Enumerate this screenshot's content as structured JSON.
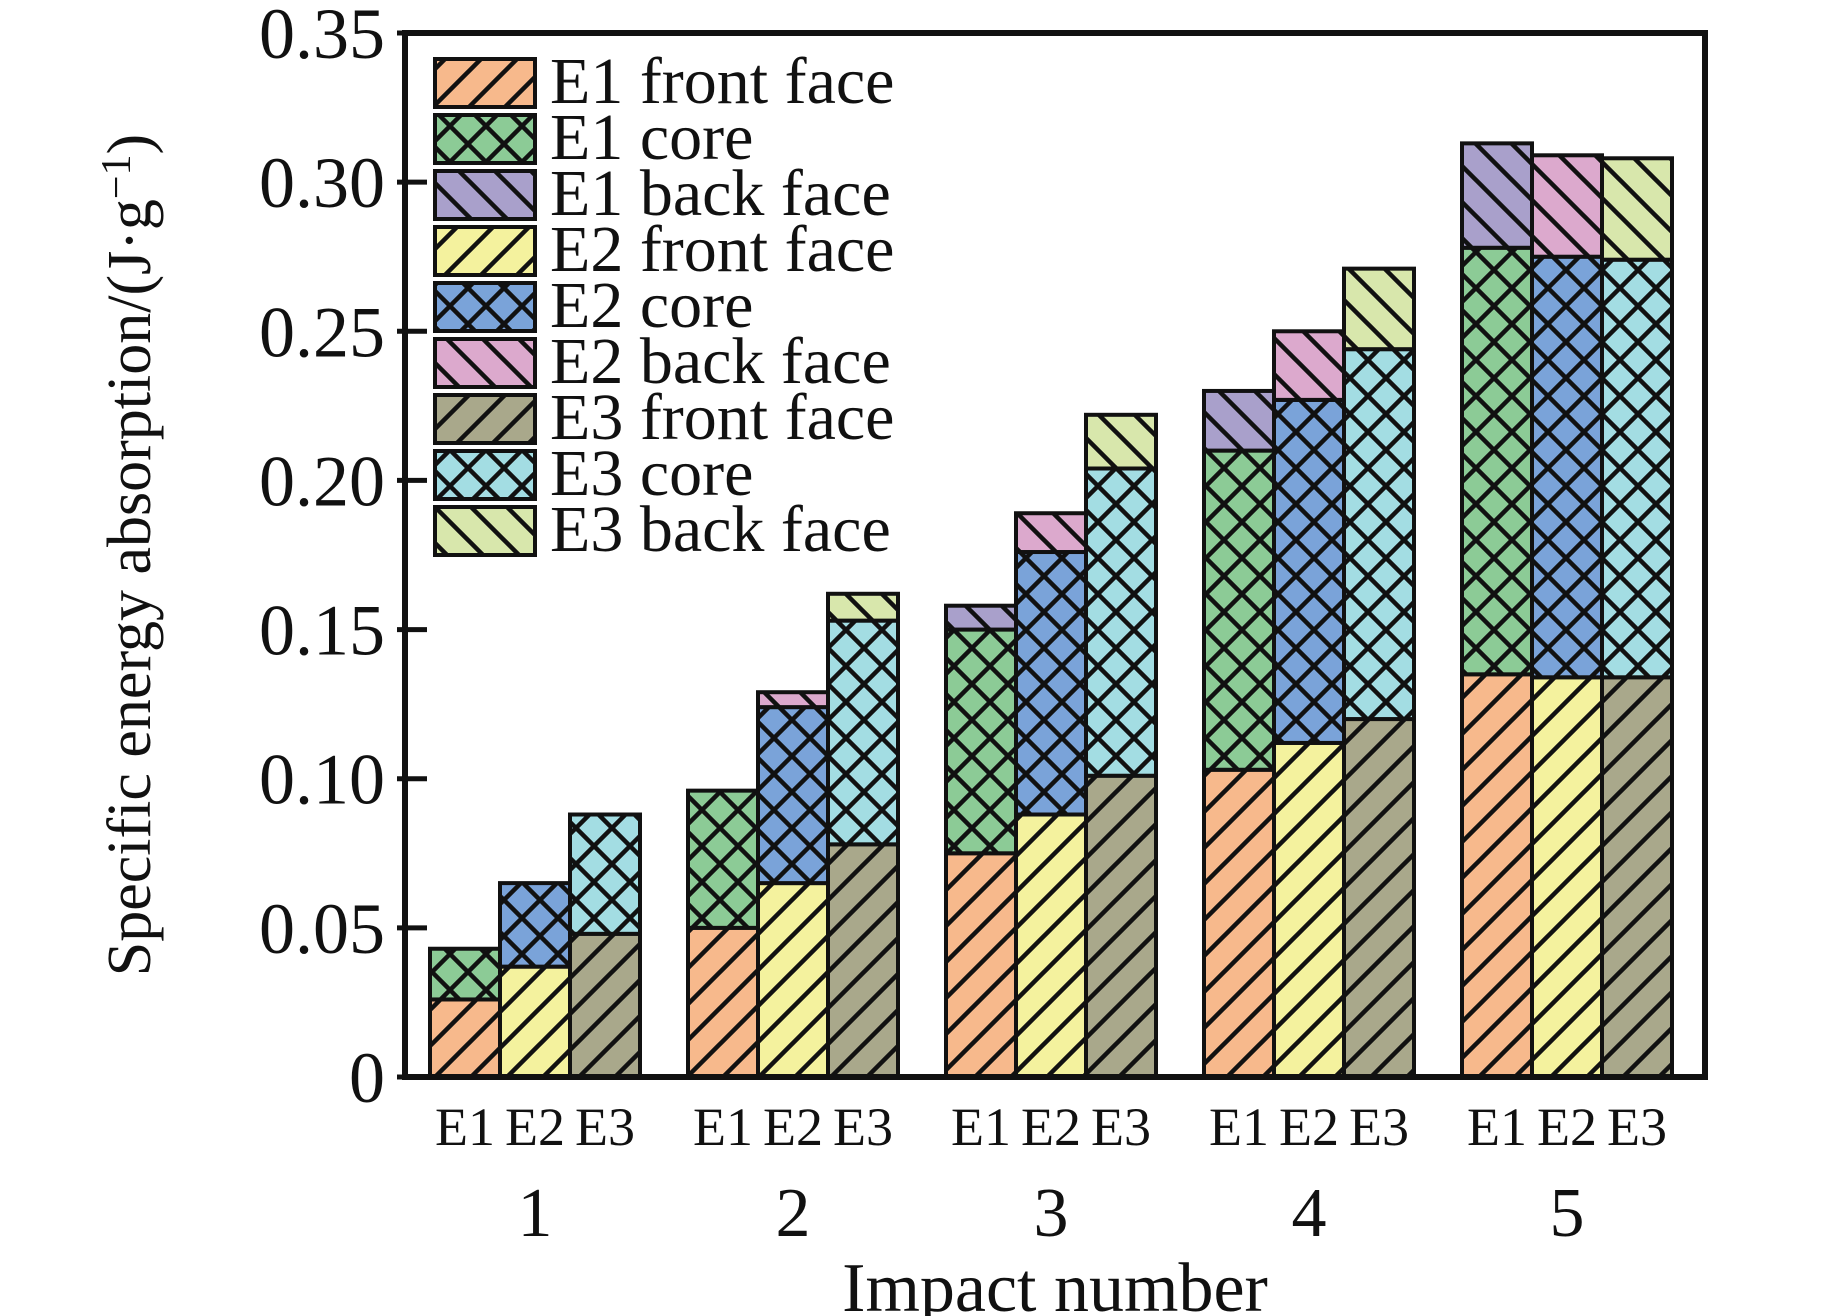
{
  "page": {
    "background": "#ffffff",
    "outline_color": "#111111"
  },
  "chart_data": {
    "type": "bar",
    "stacked": true,
    "orientation": "vertical",
    "title": "",
    "xlabel": "Impact number",
    "ylabel": "Specific energy absorption/(J·g⁻¹)",
    "ylabel_parts": {
      "main": "Specific energy absorption/(J·g",
      "superscript": "−1",
      "close": ")"
    },
    "ylim": [
      0,
      0.35
    ],
    "grid": false,
    "legend_position": "upper-left",
    "yticks": [
      {
        "value": 0.0,
        "label": "0"
      },
      {
        "value": 0.05,
        "label": "0.05"
      },
      {
        "value": 0.1,
        "label": "0.10"
      },
      {
        "value": 0.15,
        "label": "0.15"
      },
      {
        "value": 0.2,
        "label": "0.20"
      },
      {
        "value": 0.25,
        "label": "0.25"
      },
      {
        "value": 0.3,
        "label": "0.30"
      },
      {
        "value": 0.35,
        "label": "0.35"
      }
    ],
    "group_labels": [
      "1",
      "2",
      "3",
      "4",
      "5"
    ],
    "bar_labels": [
      "E1",
      "E2",
      "E3"
    ],
    "series": [
      {
        "name": "E1 front face",
        "bar": "E1",
        "segment": "front",
        "color": "#F7B98C",
        "hatch": "fwd",
        "values": [
          0.026,
          0.05,
          0.075,
          0.103,
          0.135
        ]
      },
      {
        "name": "E1 core",
        "bar": "E1",
        "segment": "core",
        "color": "#8CCB96",
        "hatch": "cross",
        "values": [
          0.017,
          0.046,
          0.075,
          0.107,
          0.143
        ]
      },
      {
        "name": "E1 back face",
        "bar": "E1",
        "segment": "back",
        "color": "#A9A0CB",
        "hatch": "bwd",
        "values": [
          0.0,
          0.0,
          0.008,
          0.02,
          0.035
        ]
      },
      {
        "name": "E2 front face",
        "bar": "E2",
        "segment": "front",
        "color": "#F4F29E",
        "hatch": "fwd",
        "values": [
          0.037,
          0.065,
          0.088,
          0.112,
          0.134
        ]
      },
      {
        "name": "E2 core",
        "bar": "E2",
        "segment": "core",
        "color": "#7AA3D9",
        "hatch": "cross",
        "values": [
          0.028,
          0.059,
          0.088,
          0.115,
          0.141
        ]
      },
      {
        "name": "E2 back face",
        "bar": "E2",
        "segment": "back",
        "color": "#DCA9CD",
        "hatch": "bwd",
        "values": [
          0.0,
          0.005,
          0.013,
          0.023,
          0.034
        ]
      },
      {
        "name": "E3 front face",
        "bar": "E3",
        "segment": "front",
        "color": "#A9A88B",
        "hatch": "fwd",
        "values": [
          0.048,
          0.078,
          0.101,
          0.12,
          0.134
        ]
      },
      {
        "name": "E3 core",
        "bar": "E3",
        "segment": "core",
        "color": "#A3DDE3",
        "hatch": "cross",
        "values": [
          0.04,
          0.075,
          0.103,
          0.124,
          0.14
        ]
      },
      {
        "name": "E3 back face",
        "bar": "E3",
        "segment": "back",
        "color": "#D8E7AC",
        "hatch": "bwd",
        "values": [
          0.0,
          0.009,
          0.018,
          0.027,
          0.034
        ]
      }
    ],
    "bar_totals": {
      "E1": [
        0.043,
        0.096,
        0.158,
        0.23,
        0.313
      ],
      "E2": [
        0.065,
        0.129,
        0.189,
        0.25,
        0.309
      ],
      "E3": [
        0.088,
        0.162,
        0.222,
        0.271,
        0.308
      ]
    }
  }
}
